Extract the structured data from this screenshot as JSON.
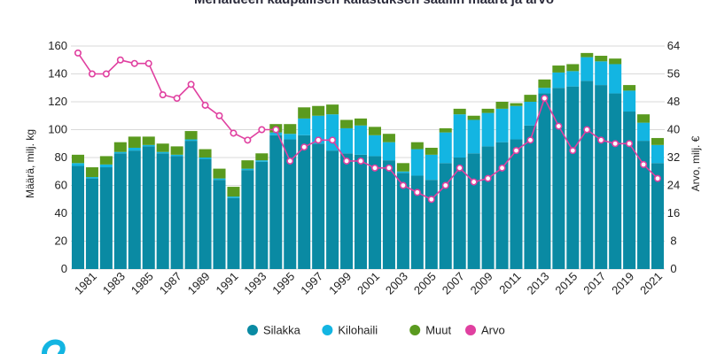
{
  "chart_data": {
    "type": "bar",
    "title": "Merialueen kaupallisen kalastuksen saaliin määrä ja arvo",
    "ylabel": "Määrä, milj. kg",
    "y2label": "Arvo, milj. €",
    "ylim": [
      0,
      160
    ],
    "y2lim": [
      0,
      64
    ],
    "yticks": [
      "0",
      "20",
      "40",
      "60",
      "80",
      "100",
      "120",
      "140",
      "160"
    ],
    "y2ticks": [
      "0",
      "8",
      "16",
      "24",
      "32",
      "40",
      "48",
      "56",
      "64"
    ],
    "grid": true,
    "legend_position": "bottom",
    "categories": [
      1980,
      1981,
      1982,
      1983,
      1984,
      1985,
      1986,
      1987,
      1988,
      1989,
      1990,
      1991,
      1992,
      1993,
      1994,
      1995,
      1996,
      1997,
      1998,
      1999,
      2000,
      2001,
      2002,
      2003,
      2004,
      2005,
      2006,
      2007,
      2008,
      2009,
      2010,
      2011,
      2012,
      2013,
      2014,
      2015,
      2016,
      2017,
      2018,
      2019,
      2020,
      2021
    ],
    "xtick_labels": [
      "1981",
      "1983",
      "1985",
      "1987",
      "1989",
      "1991",
      "1993",
      "1995",
      "1997",
      "1999",
      "2001",
      "2003",
      "2005",
      "2007",
      "2009",
      "2011",
      "2013",
      "2015",
      "2017",
      "2019",
      "2021"
    ],
    "series": [
      {
        "name": "Silakka",
        "type": "bar",
        "stack": "maara",
        "color": "#0a8aa3",
        "values": [
          74,
          65,
          73,
          83,
          85,
          88,
          83,
          81,
          92,
          79,
          64,
          51,
          71,
          77,
          96,
          93,
          96,
          90,
          85,
          83,
          82,
          81,
          78,
          69,
          67,
          64,
          76,
          80,
          83,
          88,
          91,
          93,
          103,
          126,
          130,
          131,
          135,
          132,
          126,
          113,
          92,
          76
        ]
      },
      {
        "name": "Kilohaili",
        "type": "bar",
        "stack": "maara",
        "color": "#13b5e2",
        "values": [
          2,
          1,
          2,
          1,
          2,
          1,
          1,
          1,
          1,
          1,
          1,
          1,
          1,
          1,
          2,
          4,
          12,
          20,
          26,
          18,
          21,
          15,
          13,
          1,
          19,
          18,
          22,
          31,
          24,
          24,
          24,
          24,
          17,
          4,
          11,
          11,
          17,
          17,
          21,
          15,
          13,
          13
        ]
      },
      {
        "name": "Muut",
        "type": "bar",
        "stack": "maara",
        "color": "#5a9a1f",
        "values": [
          6,
          7,
          6,
          7,
          8,
          6,
          6,
          6,
          6,
          6,
          7,
          7,
          6,
          5,
          6,
          7,
          8,
          7,
          7,
          6,
          5,
          6,
          6,
          6,
          5,
          5,
          3,
          4,
          3,
          3,
          5,
          2,
          5,
          6,
          5,
          5,
          3,
          4,
          4,
          4,
          6,
          5
        ]
      },
      {
        "name": "Arvo",
        "type": "line",
        "axis": "y2",
        "color": "#e040a0",
        "values": [
          62,
          56,
          56,
          60,
          59,
          59,
          50,
          49,
          53,
          47,
          44,
          39,
          37,
          40,
          40,
          31,
          35,
          37,
          37,
          31,
          31,
          29,
          29,
          24,
          22,
          20,
          24,
          29,
          25,
          26,
          29,
          34,
          37,
          49,
          41,
          34,
          40,
          37,
          36,
          36,
          30,
          26
        ]
      }
    ]
  },
  "logo": {
    "icon": "swirl-logo-icon",
    "color": "#13b5e2"
  }
}
